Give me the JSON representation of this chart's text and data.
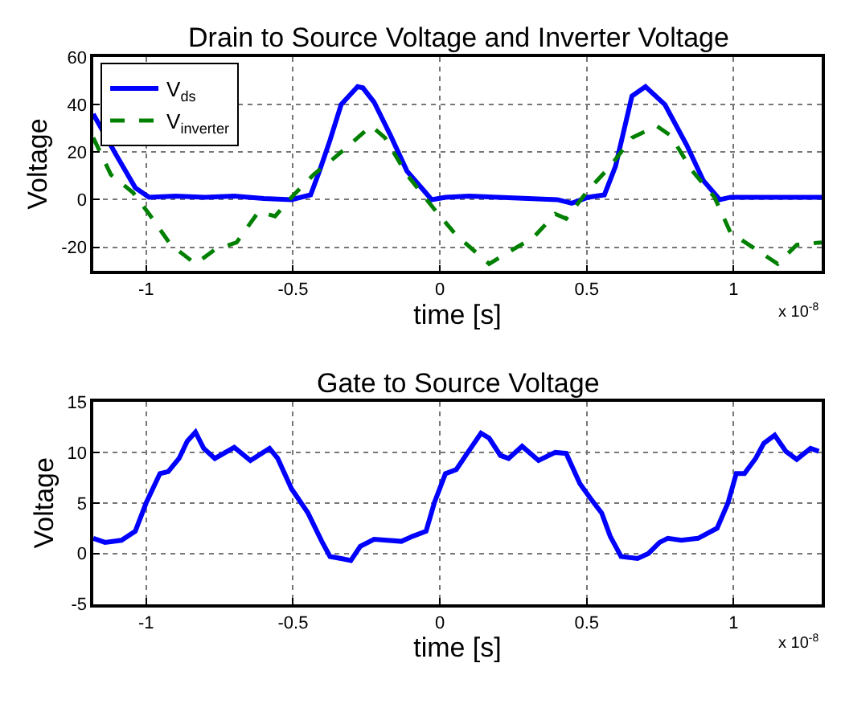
{
  "chart_data": [
    {
      "type": "line",
      "title": "Drain to Source Voltage and Inverter Voltage",
      "xlabel": "time [s]",
      "ylabel": "Voltage",
      "annotations": [
        "x 10$^{-8}$"
      ],
      "xlim": [
        -1.18,
        1.3
      ],
      "xticks": [
        -1,
        -0.5,
        0,
        0.5,
        1
      ],
      "ylim": [
        -30,
        60
      ],
      "yticks": [
        -20,
        0,
        20,
        40,
        60
      ],
      "grid": true,
      "legend": "top left",
      "series": [
        {
          "name": "V$_{ds}$",
          "color": "#0000ff",
          "line_style": "solid",
          "x": [
            -1.18,
            -1.103,
            -1.037,
            -0.99,
            -0.9,
            -0.8,
            -0.7,
            -0.6,
            -0.505,
            -0.44,
            -0.41,
            -0.374,
            -0.336,
            -0.28,
            -0.262,
            -0.224,
            -0.168,
            -0.112,
            -0.056,
            -0.028,
            0.019,
            0.1,
            0.2,
            0.3,
            0.4,
            0.449,
            0.505,
            0.56,
            0.598,
            0.654,
            0.7,
            0.766,
            0.84,
            0.897,
            0.953,
            0.99,
            1.1,
            1.2,
            1.3
          ],
          "values": [
            36,
            19,
            5,
            1,
            1.5,
            1,
            1.5,
            0.5,
            0,
            2,
            12,
            25,
            40,
            47.5,
            47,
            41,
            27,
            12,
            4,
            0,
            1,
            1.5,
            1,
            0.5,
            0,
            -1.5,
            1,
            2,
            14,
            43.5,
            47.5,
            40,
            23,
            8,
            0,
            1,
            1,
            1,
            1
          ]
        },
        {
          "name": "V$_{inverter}$",
          "color": "#008000",
          "line_style": "dashed",
          "x": [
            -1.18,
            -1.12,
            -1.045,
            -0.99,
            -0.916,
            -0.832,
            -0.766,
            -0.692,
            -0.617,
            -0.561,
            -0.505,
            -0.43,
            -0.355,
            -0.28,
            -0.234,
            -0.187,
            -0.112,
            -0.019,
            0.056,
            0.168,
            0.262,
            0.318,
            0.393,
            0.43,
            0.505,
            0.58,
            0.654,
            0.738,
            0.785,
            0.86,
            0.935,
            0.99,
            1.065,
            1.15,
            1.215,
            1.3
          ],
          "values": [
            26,
            10.5,
            3,
            -6,
            -19,
            -27,
            -21,
            -18,
            -5,
            -7,
            1,
            10.5,
            18,
            26,
            31,
            26,
            10.5,
            -4,
            -15,
            -27,
            -20,
            -16,
            -6,
            -8,
            4,
            14,
            26,
            31,
            27,
            12,
            1,
            -14,
            -20,
            -27,
            -19,
            -18
          ]
        }
      ]
    },
    {
      "type": "line",
      "title": "Gate to Source Voltage",
      "xlabel": "time [s]",
      "ylabel": "Voltage",
      "annotations": [
        "x 10$^{-8}$"
      ],
      "xlim": [
        -1.18,
        1.3
      ],
      "xticks": [
        -1,
        -0.5,
        0,
        0.5,
        1
      ],
      "ylim": [
        -5,
        15
      ],
      "yticks": [
        -5,
        0,
        5,
        10,
        15
      ],
      "grid": true,
      "series": [
        {
          "color": "#0000ff",
          "line_style": "solid",
          "x": [
            -1.18,
            -1.14,
            -1.084,
            -1.037,
            -1,
            -0.953,
            -0.925,
            -0.888,
            -0.86,
            -0.832,
            -0.804,
            -0.766,
            -0.7,
            -0.645,
            -0.58,
            -0.552,
            -0.505,
            -0.449,
            -0.402,
            -0.374,
            -0.336,
            -0.303,
            -0.271,
            -0.224,
            -0.131,
            -0.093,
            -0.047,
            -0.019,
            0.019,
            0.056,
            0.093,
            0.14,
            0.168,
            0.206,
            0.234,
            0.28,
            0.336,
            0.393,
            0.43,
            0.477,
            0.514,
            0.551,
            0.58,
            0.617,
            0.673,
            0.71,
            0.748,
            0.776,
            0.822,
            0.879,
            0.944,
            0.981,
            1.009,
            1.037,
            1.075,
            1.103,
            1.14,
            1.178,
            1.215,
            1.262,
            1.29
          ],
          "values": [
            1.5,
            1.1,
            1.3,
            2.2,
            5,
            7.9,
            8.1,
            9.4,
            11.1,
            12,
            10.4,
            9.4,
            10.5,
            9.2,
            10.4,
            9.4,
            6.4,
            4,
            1.2,
            -0.3,
            -0.5,
            -0.7,
            0.7,
            1.4,
            1.2,
            1.7,
            2.2,
            5,
            7.9,
            8.3,
            9.9,
            11.9,
            11.4,
            9.7,
            9.4,
            10.6,
            9.2,
            10,
            9.9,
            6.9,
            5.4,
            4,
            1.7,
            -0.3,
            -0.5,
            0,
            1.1,
            1.5,
            1.3,
            1.5,
            2.5,
            5,
            7.9,
            7.9,
            9.4,
            10.9,
            11.7,
            10.1,
            9.3,
            10.4,
            10.1
          ]
        }
      ]
    }
  ]
}
